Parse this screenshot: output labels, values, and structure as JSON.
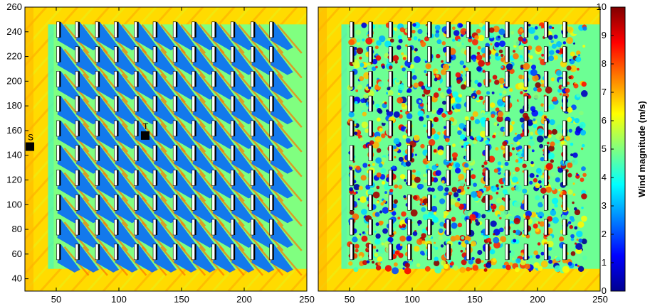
{
  "chart_data": [
    {
      "type": "heatmap",
      "title": "",
      "xlabel": "",
      "ylabel": "",
      "xlim": [
        25,
        250
      ],
      "ylim": [
        30,
        260
      ],
      "xticks": [
        50,
        100,
        150,
        200,
        250
      ],
      "yticks": [
        40,
        60,
        80,
        100,
        120,
        140,
        160,
        180,
        200,
        220,
        240,
        260
      ],
      "turbines": {
        "x": [
          52,
          67,
          83,
          98,
          114,
          129,
          145,
          160,
          176,
          191,
          207,
          222
        ],
        "y": [
          60,
          80,
          100,
          120,
          140,
          160,
          180,
          200,
          220,
          240
        ]
      },
      "markers": [
        {
          "label": "S",
          "x": 29,
          "y": 147
        },
        {
          "label": "T",
          "x": 121,
          "y": 156
        }
      ],
      "field_description_level": {
        "freestream": 6.5,
        "wake": 3
      }
    },
    {
      "type": "heatmap",
      "title": "",
      "xlabel": "",
      "ylabel": "",
      "xlim": [
        25,
        250
      ],
      "ylim": [
        30,
        260
      ],
      "xticks": [
        50,
        100,
        150,
        200,
        250
      ],
      "turbines": {
        "x": [
          52,
          67,
          83,
          98,
          114,
          129,
          145,
          160,
          176,
          191,
          207,
          222
        ],
        "y": [
          60,
          80,
          100,
          120,
          140,
          160,
          180,
          200,
          220,
          240
        ]
      }
    }
  ],
  "colorbar": {
    "label": "Wind magnitude (m/s)",
    "range": [
      0,
      10
    ],
    "ticks": [
      "0",
      "1",
      "2",
      "3",
      "4",
      "5",
      "6",
      "7",
      "8",
      "9",
      "10"
    ],
    "colors": [
      "#00008f",
      "#0000ff",
      "#0080ff",
      "#00ffff",
      "#80ff80",
      "#ffff00",
      "#ff8000",
      "#ff0000",
      "#800000"
    ]
  }
}
